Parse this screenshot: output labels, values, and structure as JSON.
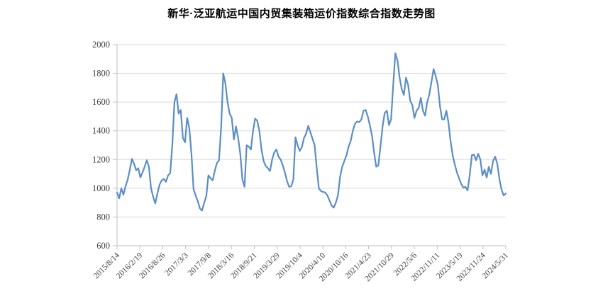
{
  "title": "新华·泛亚航运中国内贸集装箱运价指数综合指数走势图",
  "colors": {
    "line": "#5B8DC7",
    "grid": "#D9D9D9",
    "axis": "#BFBFBF",
    "tick_label": "#404040",
    "title": "#000000",
    "background": "#FFFFFF"
  },
  "chart_data": {
    "type": "line",
    "title": "新华·泛亚航运中国内贸集装箱运价指数综合指数走势图",
    "legend": "none",
    "grid": "horizontal",
    "ylim": [
      600,
      2000
    ],
    "y_ticks": [
      600,
      800,
      1000,
      1200,
      1400,
      1600,
      1800,
      2000
    ],
    "x_tick_labels": [
      "2015/8/14",
      "2016/2/19",
      "2016/8/26",
      "2017/3/3",
      "2017/9/8",
      "2018/3/16",
      "2018/9/21",
      "2019/3/29",
      "2019/10/4",
      "2020/4/10",
      "2020/10/16",
      "2021/4/23",
      "2021/10/29",
      "2022/5/6",
      "2022/11/11",
      "2023/5/19",
      "2023/11/24",
      "2024/5/31"
    ],
    "values": [
      970,
      930,
      1000,
      955,
      1015,
      1060,
      1130,
      1205,
      1170,
      1125,
      1140,
      1075,
      1110,
      1150,
      1195,
      1150,
      1000,
      940,
      895,
      965,
      1025,
      1055,
      1065,
      1045,
      1090,
      1105,
      1300,
      1600,
      1655,
      1520,
      1545,
      1350,
      1320,
      1490,
      1420,
      1245,
      995,
      950,
      910,
      860,
      845,
      900,
      945,
      1090,
      1070,
      1055,
      1120,
      1175,
      1195,
      1420,
      1800,
      1730,
      1600,
      1520,
      1490,
      1340,
      1430,
      1350,
      1240,
      1060,
      1010,
      1300,
      1290,
      1270,
      1400,
      1485,
      1470,
      1400,
      1270,
      1190,
      1155,
      1140,
      1120,
      1200,
      1250,
      1270,
      1220,
      1200,
      1160,
      1110,
      1050,
      1010,
      1015,
      1060,
      1355,
      1300,
      1260,
      1285,
      1350,
      1380,
      1435,
      1390,
      1345,
      1300,
      1140,
      1000,
      980,
      975,
      970,
      950,
      915,
      880,
      865,
      900,
      950,
      1080,
      1150,
      1190,
      1230,
      1290,
      1330,
      1400,
      1450,
      1465,
      1460,
      1480,
      1540,
      1545,
      1500,
      1440,
      1370,
      1250,
      1150,
      1160,
      1290,
      1430,
      1525,
      1540,
      1440,
      1480,
      1720,
      1940,
      1890,
      1770,
      1690,
      1650,
      1770,
      1720,
      1610,
      1580,
      1490,
      1540,
      1560,
      1630,
      1540,
      1505,
      1600,
      1655,
      1740,
      1830,
      1780,
      1720,
      1570,
      1480,
      1480,
      1540,
      1460,
      1330,
      1230,
      1165,
      1110,
      1070,
      1030,
      1005,
      1010,
      985,
      1090,
      1230,
      1235,
      1195,
      1240,
      1200,
      1090,
      1130,
      1075,
      1150,
      1100,
      1190,
      1220,
      1170,
      1065,
      990,
      950,
      965
    ]
  }
}
